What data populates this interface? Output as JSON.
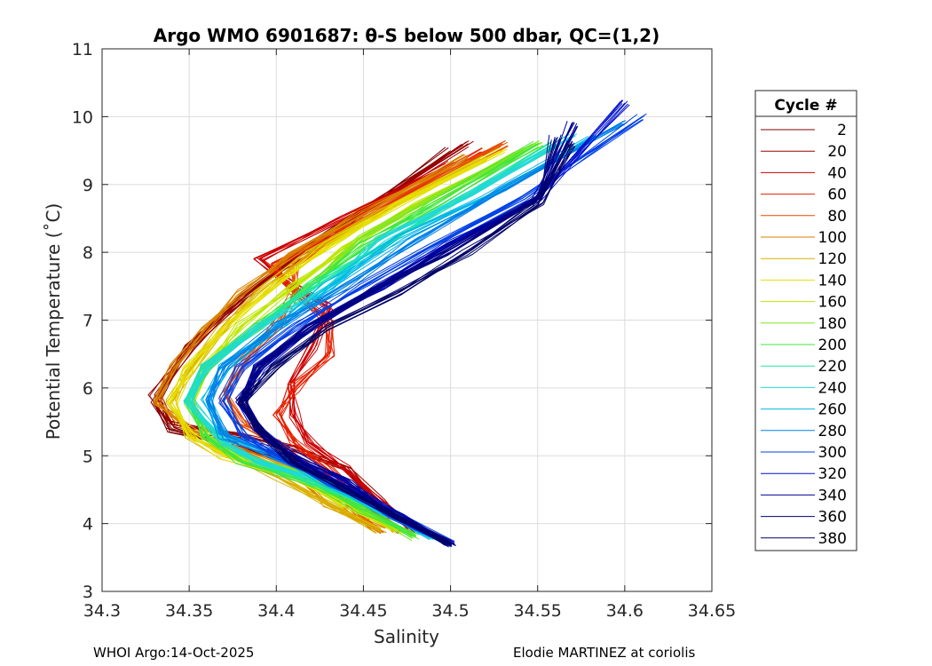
{
  "chart_data": {
    "type": "line",
    "title": "Argo WMO 6901687: θ-S below 500 dbar,  QC=(1,2)",
    "xlabel": "Salinity",
    "ylabel": "Potential Temperature (˚C)",
    "xlim": [
      34.3,
      34.65
    ],
    "ylim": [
      3,
      11
    ],
    "xticks": [
      34.3,
      34.35,
      34.4,
      34.45,
      34.5,
      34.55,
      34.6,
      34.65
    ],
    "xtick_labels": [
      "34.3",
      "34.35",
      "34.4",
      "34.45",
      "34.5",
      "34.55",
      "34.6",
      "34.65"
    ],
    "yticks": [
      3,
      4,
      5,
      6,
      7,
      8,
      9,
      10,
      11
    ],
    "ytick_labels": [
      "3",
      "4",
      "5",
      "6",
      "7",
      "8",
      "9",
      "10",
      "11"
    ],
    "grid": true,
    "legend": {
      "title": "Cycle #",
      "position": "outside-right",
      "entries": [
        {
          "label": "2",
          "color": "#800000"
        },
        {
          "label": "20",
          "color": "#9a0000"
        },
        {
          "label": "40",
          "color": "#cc0000"
        },
        {
          "label": "60",
          "color": "#e62000"
        },
        {
          "label": "80",
          "color": "#e64a00"
        },
        {
          "label": "100",
          "color": "#d98200"
        },
        {
          "label": "120",
          "color": "#d9b000"
        },
        {
          "label": "140",
          "color": "#e6e000"
        },
        {
          "label": "160",
          "color": "#bfe600"
        },
        {
          "label": "180",
          "color": "#80e620"
        },
        {
          "label": "200",
          "color": "#40e640"
        },
        {
          "label": "220",
          "color": "#20e6a0"
        },
        {
          "label": "240",
          "color": "#20d9d9"
        },
        {
          "label": "260",
          "color": "#00b8e6"
        },
        {
          "label": "280",
          "color": "#0080e6"
        },
        {
          "label": "300",
          "color": "#0040e6"
        },
        {
          "label": "320",
          "color": "#0010cc"
        },
        {
          "label": "340",
          "color": "#00009a"
        },
        {
          "label": "360",
          "color": "#000080"
        },
        {
          "label": "380",
          "color": "#000066"
        }
      ]
    },
    "series": [
      {
        "cycle": 2,
        "color": "#800000",
        "x": [
          34.47,
          34.45,
          34.43,
          34.4,
          34.37,
          34.34,
          34.33,
          34.35,
          34.38,
          34.41,
          34.45,
          34.5
        ],
        "y": [
          3.9,
          4.3,
          4.7,
          5.0,
          5.2,
          5.4,
          5.8,
          6.6,
          7.3,
          7.9,
          8.6,
          9.5
        ]
      },
      {
        "cycle": 20,
        "color": "#9a0000",
        "x": [
          34.48,
          34.46,
          34.44,
          34.41,
          34.38,
          34.34,
          34.33,
          34.35,
          34.38,
          34.41,
          34.45,
          34.51
        ],
        "y": [
          3.9,
          4.3,
          4.8,
          5.1,
          5.3,
          5.5,
          5.9,
          6.6,
          7.3,
          7.9,
          8.6,
          9.6
        ]
      },
      {
        "cycle": 40,
        "color": "#cc0000",
        "x": [
          34.48,
          34.46,
          34.44,
          34.42,
          34.41,
          34.41,
          34.42,
          34.43,
          34.41,
          34.39,
          34.44,
          34.5
        ],
        "y": [
          3.9,
          4.3,
          4.8,
          5.2,
          5.6,
          6.1,
          6.6,
          7.2,
          7.5,
          7.9,
          8.5,
          9.3
        ]
      },
      {
        "cycle": 60,
        "color": "#e62000",
        "x": [
          34.47,
          34.45,
          34.43,
          34.41,
          34.4,
          34.41,
          34.43,
          34.43,
          34.41,
          34.4,
          34.45,
          34.52
        ],
        "y": [
          3.9,
          4.3,
          4.8,
          5.2,
          5.6,
          6.0,
          6.5,
          7.0,
          7.4,
          7.8,
          8.5,
          9.5
        ]
      },
      {
        "cycle": 80,
        "color": "#e64a00",
        "x": [
          34.46,
          34.44,
          34.42,
          34.4,
          34.38,
          34.37,
          34.38,
          34.4,
          34.41,
          34.41,
          34.45,
          34.53
        ],
        "y": [
          3.9,
          4.3,
          4.8,
          5.2,
          5.5,
          5.9,
          6.4,
          6.9,
          7.4,
          7.8,
          8.5,
          9.6
        ]
      },
      {
        "cycle": 100,
        "color": "#d98200",
        "x": [
          34.46,
          34.43,
          34.41,
          34.38,
          34.35,
          34.33,
          34.34,
          34.36,
          34.38,
          34.41,
          34.45,
          34.51
        ],
        "y": [
          3.9,
          4.3,
          4.8,
          5.1,
          5.4,
          5.8,
          6.3,
          6.9,
          7.4,
          8.0,
          8.6,
          9.4
        ]
      },
      {
        "cycle": 120,
        "color": "#d9b000",
        "x": [
          34.46,
          34.43,
          34.4,
          34.37,
          34.35,
          34.34,
          34.35,
          34.37,
          34.39,
          34.42,
          34.46,
          34.52
        ],
        "y": [
          3.9,
          4.3,
          4.7,
          5.0,
          5.3,
          5.8,
          6.3,
          6.9,
          7.4,
          8.0,
          8.6,
          9.4
        ]
      },
      {
        "cycle": 140,
        "color": "#e6e000",
        "x": [
          34.47,
          34.44,
          34.41,
          34.37,
          34.35,
          34.34,
          34.35,
          34.37,
          34.4,
          34.43,
          34.47,
          34.53
        ],
        "y": [
          3.9,
          4.3,
          4.7,
          5.0,
          5.3,
          5.8,
          6.3,
          6.9,
          7.5,
          8.1,
          8.7,
          9.5
        ]
      },
      {
        "cycle": 160,
        "color": "#bfe600",
        "x": [
          34.47,
          34.44,
          34.41,
          34.38,
          34.36,
          34.35,
          34.36,
          34.38,
          34.41,
          34.44,
          34.48,
          34.54
        ],
        "y": [
          3.9,
          4.3,
          4.7,
          5.0,
          5.3,
          5.8,
          6.3,
          6.9,
          7.5,
          8.1,
          8.7,
          9.5
        ]
      },
      {
        "cycle": 180,
        "color": "#80e620",
        "x": [
          34.48,
          34.45,
          34.42,
          34.38,
          34.36,
          34.35,
          34.36,
          34.39,
          34.42,
          34.45,
          34.49,
          34.55
        ],
        "y": [
          3.8,
          4.2,
          4.7,
          5.0,
          5.3,
          5.8,
          6.3,
          6.9,
          7.5,
          8.2,
          8.8,
          9.6
        ]
      },
      {
        "cycle": 200,
        "color": "#40e640",
        "x": [
          34.48,
          34.45,
          34.42,
          34.38,
          34.36,
          34.35,
          34.36,
          34.39,
          34.42,
          34.45,
          34.49,
          34.55
        ],
        "y": [
          3.8,
          4.2,
          4.6,
          4.9,
          5.3,
          5.8,
          6.3,
          6.9,
          7.5,
          8.1,
          8.7,
          9.6
        ]
      },
      {
        "cycle": 220,
        "color": "#20e6a0",
        "x": [
          34.49,
          34.46,
          34.42,
          34.39,
          34.37,
          34.35,
          34.36,
          34.39,
          34.42,
          34.46,
          34.5,
          34.56
        ],
        "y": [
          3.8,
          4.2,
          4.6,
          4.9,
          5.2,
          5.8,
          6.3,
          6.9,
          7.5,
          8.1,
          8.7,
          9.6
        ]
      },
      {
        "cycle": 240,
        "color": "#20d9d9",
        "x": [
          34.49,
          34.46,
          34.43,
          34.39,
          34.37,
          34.35,
          34.36,
          34.39,
          34.43,
          34.46,
          34.51,
          34.57
        ],
        "y": [
          3.8,
          4.2,
          4.6,
          4.9,
          5.2,
          5.8,
          6.3,
          6.9,
          7.5,
          8.2,
          8.8,
          9.7
        ]
      },
      {
        "cycle": 260,
        "color": "#00b8e6",
        "x": [
          34.49,
          34.46,
          34.43,
          34.4,
          34.37,
          34.36,
          34.37,
          34.4,
          34.43,
          34.47,
          34.52,
          34.58
        ],
        "y": [
          3.8,
          4.2,
          4.6,
          5.0,
          5.3,
          5.8,
          6.3,
          6.9,
          7.5,
          8.2,
          8.8,
          9.7
        ]
      },
      {
        "cycle": 280,
        "color": "#0080e6",
        "x": [
          34.5,
          34.47,
          34.43,
          34.4,
          34.37,
          34.36,
          34.37,
          34.4,
          34.44,
          34.48,
          34.53,
          34.6
        ],
        "y": [
          3.7,
          4.1,
          4.6,
          5.0,
          5.3,
          5.8,
          6.3,
          6.9,
          7.5,
          8.2,
          8.9,
          9.9
        ]
      },
      {
        "cycle": 300,
        "color": "#0040e6",
        "x": [
          34.5,
          34.47,
          34.43,
          34.4,
          34.38,
          34.37,
          34.38,
          34.41,
          34.45,
          34.49,
          34.54,
          34.61
        ],
        "y": [
          3.7,
          4.1,
          4.6,
          5.0,
          5.3,
          5.8,
          6.3,
          6.9,
          7.5,
          8.1,
          8.8,
          10.0
        ]
      },
      {
        "cycle": 320,
        "color": "#0010cc",
        "x": [
          34.5,
          34.47,
          34.44,
          34.41,
          34.39,
          34.38,
          34.39,
          34.42,
          34.46,
          34.5,
          34.55,
          34.6
        ],
        "y": [
          3.7,
          4.1,
          4.6,
          5.0,
          5.4,
          5.8,
          6.3,
          6.9,
          7.5,
          8.1,
          8.8,
          10.2
        ]
      },
      {
        "cycle": 340,
        "color": "#00009a",
        "x": [
          34.5,
          34.47,
          34.44,
          34.41,
          34.39,
          34.38,
          34.39,
          34.42,
          34.46,
          34.5,
          34.55,
          34.57
        ],
        "y": [
          3.7,
          4.1,
          4.6,
          5.0,
          5.4,
          5.8,
          6.3,
          6.9,
          7.5,
          8.1,
          8.8,
          9.9
        ]
      },
      {
        "cycle": 360,
        "color": "#000080",
        "x": [
          34.5,
          34.47,
          34.44,
          34.41,
          34.39,
          34.38,
          34.39,
          34.42,
          34.46,
          34.5,
          34.55,
          34.56
        ],
        "y": [
          3.7,
          4.1,
          4.5,
          4.9,
          5.4,
          5.8,
          6.3,
          6.9,
          7.5,
          8.0,
          8.8,
          9.7
        ]
      },
      {
        "cycle": 380,
        "color": "#000066",
        "x": [
          34.5,
          34.47,
          34.44,
          34.41,
          34.39,
          34.38,
          34.4,
          34.43,
          34.47,
          34.51,
          34.55,
          34.57
        ],
        "y": [
          3.7,
          4.1,
          4.5,
          4.9,
          5.4,
          5.8,
          6.3,
          6.9,
          7.4,
          8.0,
          8.7,
          9.6
        ]
      }
    ]
  },
  "footer": {
    "left": "WHOI Argo:14-Oct-2025",
    "right": "Elodie MARTINEZ at coriolis"
  }
}
